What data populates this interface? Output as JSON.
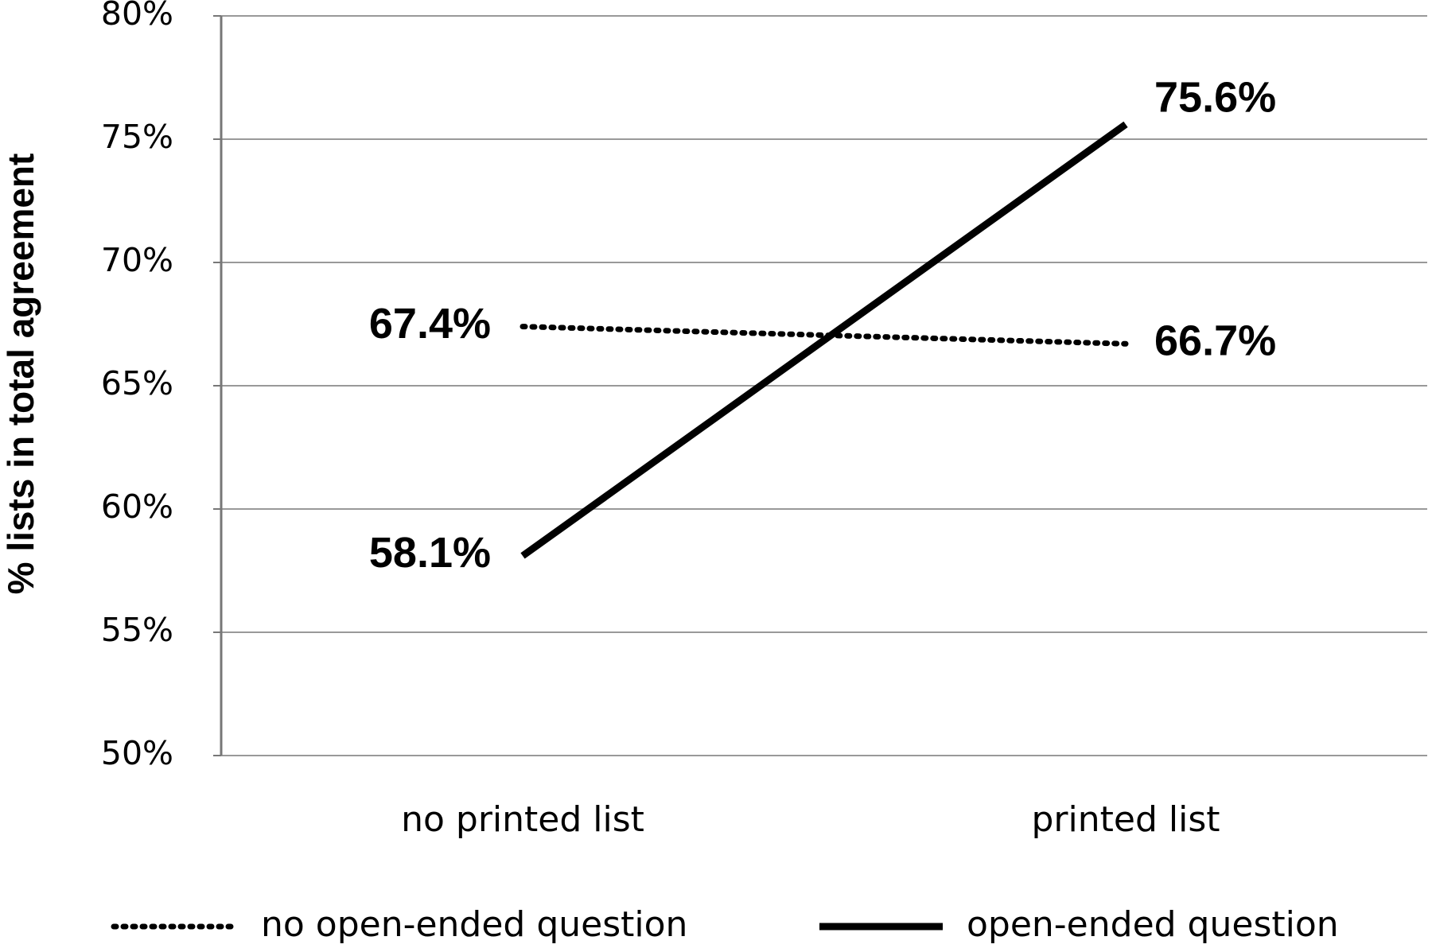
{
  "chart_data": {
    "type": "line",
    "categories": [
      "no printed list",
      "printed list"
    ],
    "y_label": "% lists in total agreement",
    "series": [
      {
        "name": "no open-ended question",
        "color": "#000000",
        "line_style": "dotted",
        "values": [
          67.4,
          66.7
        ],
        "value_labels": [
          "67.4%",
          "66.7%"
        ]
      },
      {
        "name": "open-ended question",
        "color": "#000000",
        "line_style": "solid",
        "values": [
          58.1,
          75.6
        ],
        "value_labels": [
          "58.1%",
          "75.6%"
        ]
      }
    ],
    "ylim": [
      50,
      80
    ],
    "yticks": [
      {
        "value": 50,
        "label": "50%"
      },
      {
        "value": 55,
        "label": "55%"
      },
      {
        "value": 60,
        "label": "60%"
      },
      {
        "value": 65,
        "label": "65%"
      },
      {
        "value": 70,
        "label": "70%"
      },
      {
        "value": 75,
        "label": "75%"
      },
      {
        "value": 80,
        "label": "80%"
      }
    ],
    "grid": true,
    "legend": "bottom"
  }
}
